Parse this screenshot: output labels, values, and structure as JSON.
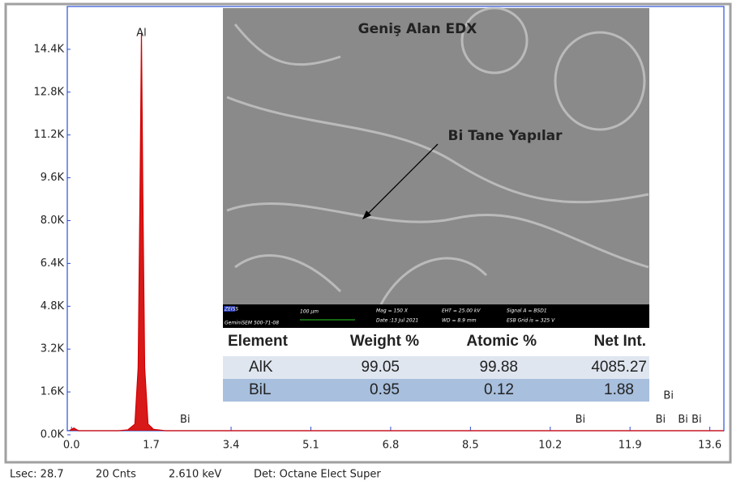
{
  "chart_data": {
    "type": "line",
    "color": "#d40000",
    "x": [
      -0.05,
      0.05,
      0.15,
      0.3,
      0.6,
      1.0,
      1.2,
      1.35,
      1.42,
      1.46,
      1.49,
      1.52,
      1.56,
      1.63,
      1.75,
      2.0,
      2.42,
      3.0,
      5.0,
      8.0,
      10.84,
      12.0,
      13.9
    ],
    "values": [
      0,
      250,
      120,
      80,
      90,
      120,
      180,
      400,
      2500,
      9000,
      15000,
      9000,
      2500,
      400,
      200,
      150,
      120,
      90,
      60,
      50,
      40,
      35,
      30
    ],
    "xlim": [
      -0.09,
      13.9
    ],
    "ylim": [
      0,
      16000
    ],
    "xticks": [
      {
        "value": 0,
        "label": "0.0"
      },
      1.7,
      3.4,
      5.1,
      6.8,
      8.5,
      10.2,
      11.9,
      13.6
    ],
    "yticks": [
      {
        "value": 0,
        "label": "0.0K"
      },
      {
        "value": 1600,
        "label": "1.6K"
      },
      {
        "value": 3200,
        "label": "3.2K"
      },
      {
        "value": 4800,
        "label": "4.8K"
      },
      {
        "value": 6400,
        "label": "6.4K"
      },
      {
        "value": 8000,
        "label": "8.0K"
      },
      {
        "value": 9600,
        "label": "9.6K"
      },
      {
        "value": 11200,
        "label": "11.2K"
      },
      {
        "value": 12800,
        "label": "12.8K"
      },
      {
        "value": 14400,
        "label": "14.4K"
      }
    ],
    "markers": [
      {
        "label": "Al",
        "energy": 1.49,
        "counts": 15000
      },
      {
        "label": "Bi",
        "energy": 2.42,
        "counts": 560
      },
      {
        "label": "Bi",
        "energy": 10.84,
        "counts": 560
      },
      {
        "label": "Bi",
        "energy": 12.55,
        "counts": 560
      },
      {
        "label": "Bi",
        "energy": 12.72,
        "counts": 1450
      },
      {
        "label": "Bi",
        "energy": 13.03,
        "counts": 560
      },
      {
        "label": "Bi",
        "energy": 13.32,
        "counts": 560
      }
    ]
  },
  "status": [
    "Lsec: 28.7",
    "20 Cnts",
    "2.610 keV",
    "Det: Octane Elect Super"
  ],
  "image": {
    "title": "Geniş Alan EDX",
    "annotation": "Bi Tane Yapılar",
    "info": [
      "ZEISS",
      "GeminiSEM 500-71-08",
      "100 µm",
      "Mag =   150 X",
      "Date :13 Jul 2021",
      "EHT = 25.00 kV",
      "WD =  8.9 mm",
      "Signal A = BSD1",
      "ESB Grid is =  325 V"
    ]
  },
  "table": {
    "header": [
      "Element",
      "Weight %",
      "Atomic %",
      "Net Int."
    ],
    "rows": [
      [
        "AlK",
        "99.05",
        "99.88",
        "4085.27"
      ],
      [
        "BiL",
        "0.95",
        "0.12",
        "1.88"
      ]
    ]
  }
}
